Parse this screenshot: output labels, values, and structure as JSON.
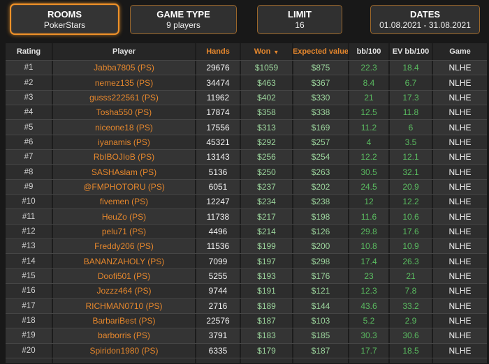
{
  "colors": {
    "page_background": "#181818",
    "accent_orange": "#e5872d",
    "active_filter_border": "#f09128",
    "money_green": "#9bd49c",
    "rate_green": "#5abc60",
    "row_odd": "#343434",
    "row_even": "#2d2d2d"
  },
  "filters": [
    {
      "label": "ROOMS",
      "value": "PokerStars",
      "active": true
    },
    {
      "label": "GAME TYPE",
      "value": "9 players",
      "active": false
    },
    {
      "label": "LIMIT",
      "value": "16",
      "active": false
    },
    {
      "label": "DATES",
      "value": "01.08.2021 - 31.08.2021",
      "active": false
    }
  ],
  "table": {
    "columns": [
      {
        "label": "Rating"
      },
      {
        "label": "Player"
      },
      {
        "label": "Hands"
      },
      {
        "label": "Won"
      },
      {
        "label": "Expected value"
      },
      {
        "label": "bb/100"
      },
      {
        "label": "EV bb/100"
      },
      {
        "label": "Game"
      }
    ],
    "sort_column": "Won",
    "sort_indicator": "▼",
    "rows": [
      {
        "rating": "#1",
        "player": "Jabba7805 (PS)",
        "hands": "29676",
        "won": "$1059",
        "ev": "$875",
        "bb": "22.3",
        "evbb": "18.4",
        "game": "NLHE"
      },
      {
        "rating": "#2",
        "player": "nemez135 (PS)",
        "hands": "34474",
        "won": "$463",
        "ev": "$367",
        "bb": "8.4",
        "evbb": "6.7",
        "game": "NLHE"
      },
      {
        "rating": "#3",
        "player": "gusss222561 (PS)",
        "hands": "11962",
        "won": "$402",
        "ev": "$330",
        "bb": "21",
        "evbb": "17.3",
        "game": "NLHE"
      },
      {
        "rating": "#4",
        "player": "Tosha550 (PS)",
        "hands": "17874",
        "won": "$358",
        "ev": "$338",
        "bb": "12.5",
        "evbb": "11.8",
        "game": "NLHE"
      },
      {
        "rating": "#5",
        "player": "niceone18 (PS)",
        "hands": "17556",
        "won": "$313",
        "ev": "$169",
        "bb": "11.2",
        "evbb": "6",
        "game": "NLHE"
      },
      {
        "rating": "#6",
        "player": "iyanamis (PS)",
        "hands": "45321",
        "won": "$292",
        "ev": "$257",
        "bb": "4",
        "evbb": "3.5",
        "game": "NLHE"
      },
      {
        "rating": "#7",
        "player": "RbIBOJIoB (PS)",
        "hands": "13143",
        "won": "$256",
        "ev": "$254",
        "bb": "12.2",
        "evbb": "12.1",
        "game": "NLHE"
      },
      {
        "rating": "#8",
        "player": "SASHAslam (PS)",
        "hands": "5136",
        "won": "$250",
        "ev": "$263",
        "bb": "30.5",
        "evbb": "32.1",
        "game": "NLHE"
      },
      {
        "rating": "#9",
        "player": "@FMPHOTORU (PS)",
        "hands": "6051",
        "won": "$237",
        "ev": "$202",
        "bb": "24.5",
        "evbb": "20.9",
        "game": "NLHE"
      },
      {
        "rating": "#10",
        "player": "fivemen (PS)",
        "hands": "12247",
        "won": "$234",
        "ev": "$238",
        "bb": "12",
        "evbb": "12.2",
        "game": "NLHE"
      },
      {
        "rating": "#11",
        "player": "HeuZo (PS)",
        "hands": "11738",
        "won": "$217",
        "ev": "$198",
        "bb": "11.6",
        "evbb": "10.6",
        "game": "NLHE"
      },
      {
        "rating": "#12",
        "player": "pelu71 (PS)",
        "hands": "4496",
        "won": "$214",
        "ev": "$126",
        "bb": "29.8",
        "evbb": "17.6",
        "game": "NLHE"
      },
      {
        "rating": "#13",
        "player": "Freddy206 (PS)",
        "hands": "11536",
        "won": "$199",
        "ev": "$200",
        "bb": "10.8",
        "evbb": "10.9",
        "game": "NLHE"
      },
      {
        "rating": "#14",
        "player": "BANANZAHOLY (PS)",
        "hands": "7099",
        "won": "$197",
        "ev": "$298",
        "bb": "17.4",
        "evbb": "26.3",
        "game": "NLHE"
      },
      {
        "rating": "#15",
        "player": "Doofi501 (PS)",
        "hands": "5255",
        "won": "$193",
        "ev": "$176",
        "bb": "23",
        "evbb": "21",
        "game": "NLHE"
      },
      {
        "rating": "#16",
        "player": "Jozzz464 (PS)",
        "hands": "9744",
        "won": "$191",
        "ev": "$121",
        "bb": "12.3",
        "evbb": "7.8",
        "game": "NLHE"
      },
      {
        "rating": "#17",
        "player": "RICHMAN0710 (PS)",
        "hands": "2716",
        "won": "$189",
        "ev": "$144",
        "bb": "43.6",
        "evbb": "33.2",
        "game": "NLHE"
      },
      {
        "rating": "#18",
        "player": "BarbariBest (PS)",
        "hands": "22576",
        "won": "$187",
        "ev": "$103",
        "bb": "5.2",
        "evbb": "2.9",
        "game": "NLHE"
      },
      {
        "rating": "#19",
        "player": "barborris (PS)",
        "hands": "3791",
        "won": "$183",
        "ev": "$185",
        "bb": "30.3",
        "evbb": "30.6",
        "game": "NLHE"
      },
      {
        "rating": "#20",
        "player": "Spiridon1980 (PS)",
        "hands": "6335",
        "won": "$179",
        "ev": "$187",
        "bb": "17.7",
        "evbb": "18.5",
        "game": "NLHE"
      }
    ]
  }
}
